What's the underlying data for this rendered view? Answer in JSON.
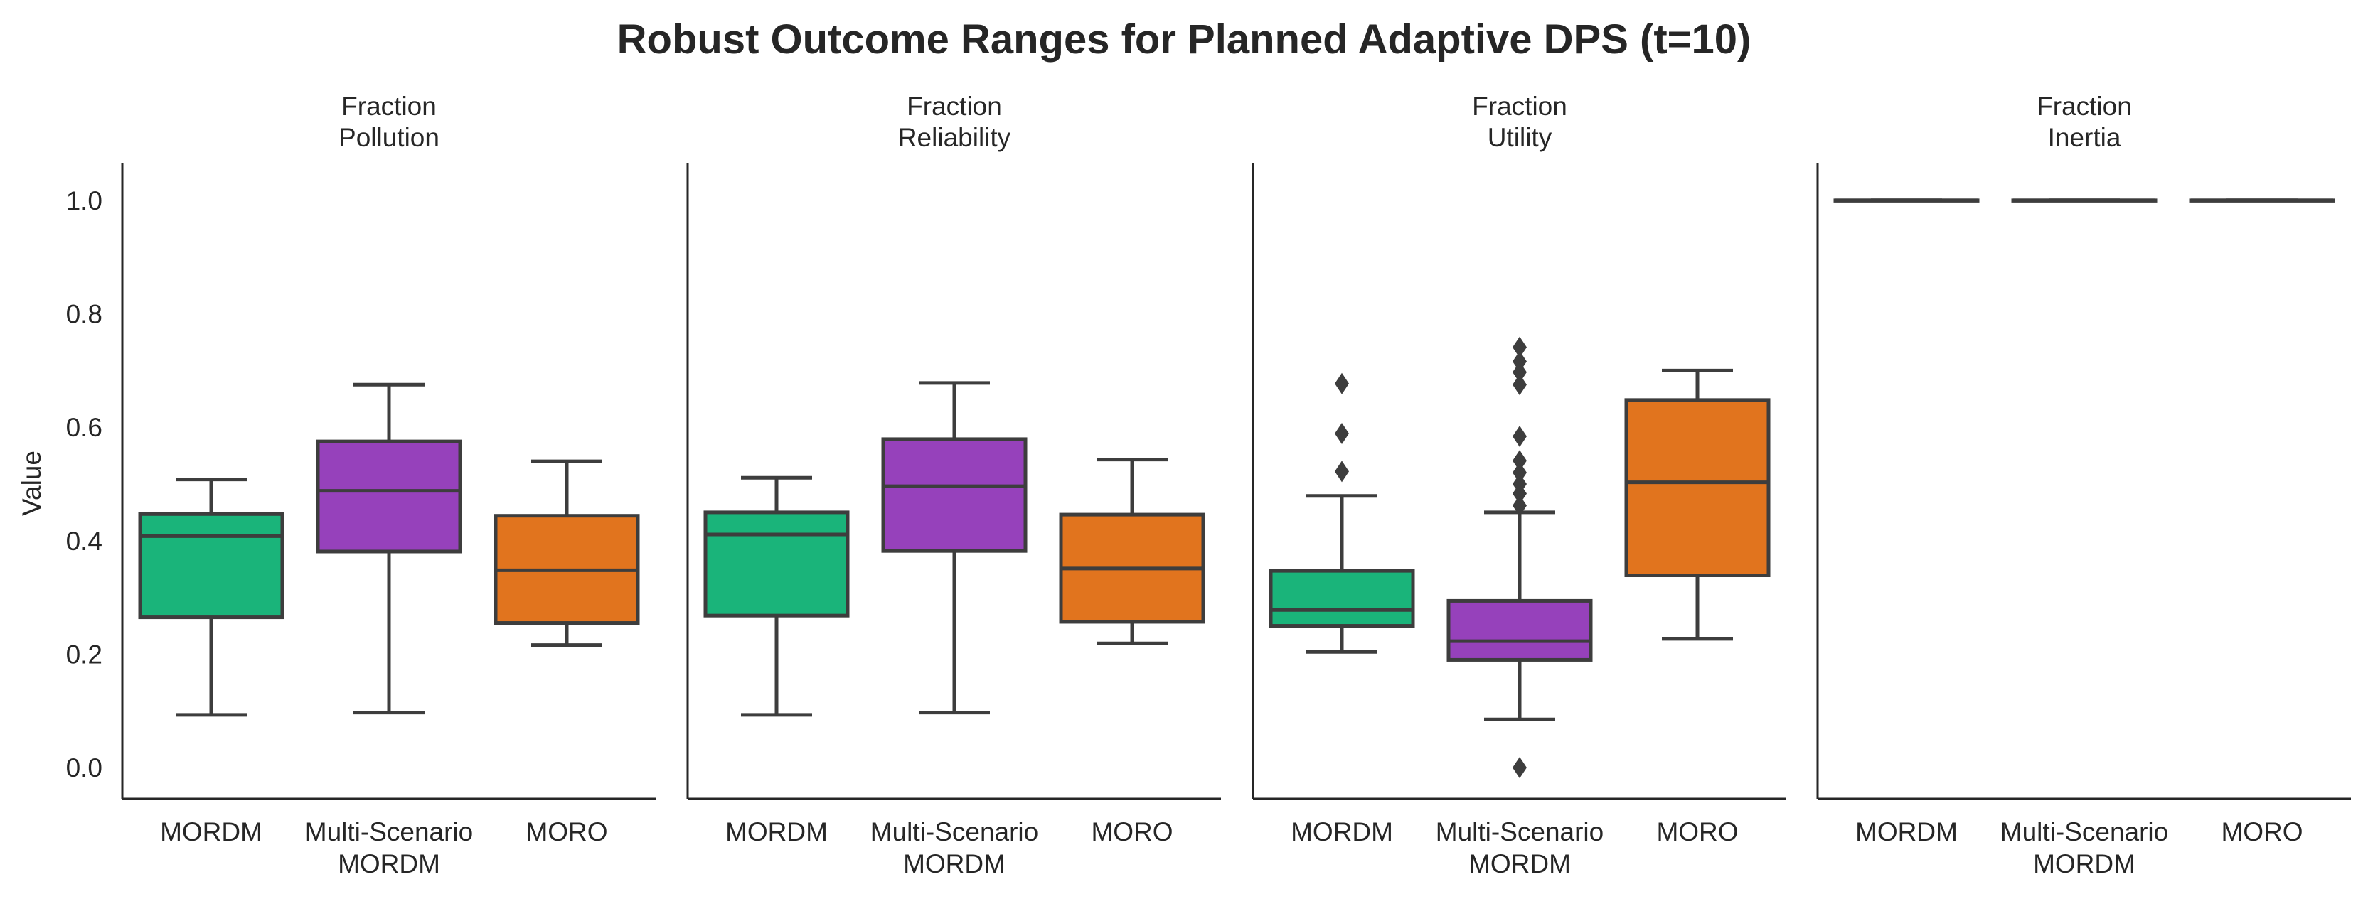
{
  "chart_data": {
    "type": "box",
    "title": "Robust Outcome Ranges for Planned Adaptive DPS (t=10)",
    "ylabel": "Value",
    "ylim": [
      -0.055,
      1.065
    ],
    "yticks": [
      "0.0",
      "0.2",
      "0.4",
      "0.6",
      "0.8",
      "1.0"
    ],
    "grid": false,
    "categories": [
      {
        "line1": "MORDM",
        "line2": ""
      },
      {
        "line1": "Multi-Scenario",
        "line2": "MORDM"
      },
      {
        "line1": "MORO",
        "line2": ""
      }
    ],
    "colors": [
      "#1ab47a",
      "#9641bb",
      "#e1741e"
    ],
    "edge_color": "#3d3d3d",
    "panels": [
      {
        "title_line1": "Fraction",
        "title_line2": "Pollution",
        "boxes": [
          {
            "min": 0.093,
            "q1": 0.265,
            "median": 0.408,
            "q3": 0.447,
            "max": 0.508,
            "outliers": []
          },
          {
            "min": 0.097,
            "q1": 0.381,
            "median": 0.488,
            "q3": 0.575,
            "max": 0.675,
            "outliers": []
          },
          {
            "min": 0.216,
            "q1": 0.255,
            "median": 0.348,
            "q3": 0.444,
            "max": 0.54,
            "outliers": []
          }
        ]
      },
      {
        "title_line1": "Fraction",
        "title_line2": "Reliability",
        "boxes": [
          {
            "min": 0.093,
            "q1": 0.268,
            "median": 0.411,
            "q3": 0.45,
            "max": 0.511,
            "outliers": []
          },
          {
            "min": 0.097,
            "q1": 0.382,
            "median": 0.496,
            "q3": 0.579,
            "max": 0.678,
            "outliers": []
          },
          {
            "min": 0.219,
            "q1": 0.257,
            "median": 0.351,
            "q3": 0.446,
            "max": 0.543,
            "outliers": []
          }
        ]
      },
      {
        "title_line1": "Fraction",
        "title_line2": "Utility",
        "boxes": [
          {
            "min": 0.204,
            "q1": 0.25,
            "median": 0.278,
            "q3": 0.347,
            "max": 0.479,
            "outliers": [
              0.522,
              0.589,
              0.677
            ]
          },
          {
            "min": 0.085,
            "q1": 0.19,
            "median": 0.223,
            "q3": 0.294,
            "max": 0.45,
            "outliers": [
              0.0,
              0.462,
              0.483,
              0.5,
              0.52,
              0.541,
              0.584,
              0.675,
              0.697,
              0.716,
              0.741
            ]
          },
          {
            "min": 0.227,
            "q1": 0.339,
            "median": 0.503,
            "q3": 0.648,
            "max": 0.7,
            "outliers": []
          }
        ]
      },
      {
        "title_line1": "Fraction",
        "title_line2": "Inertia",
        "boxes": [
          {
            "min": 1.0,
            "q1": 1.0,
            "median": 1.0,
            "q3": 1.0,
            "max": 1.0,
            "outliers": []
          },
          {
            "min": 1.0,
            "q1": 1.0,
            "median": 1.0,
            "q3": 1.0,
            "max": 1.0,
            "outliers": []
          },
          {
            "min": 1.0,
            "q1": 1.0,
            "median": 1.0,
            "q3": 1.0,
            "max": 1.0,
            "outliers": []
          }
        ]
      }
    ]
  }
}
